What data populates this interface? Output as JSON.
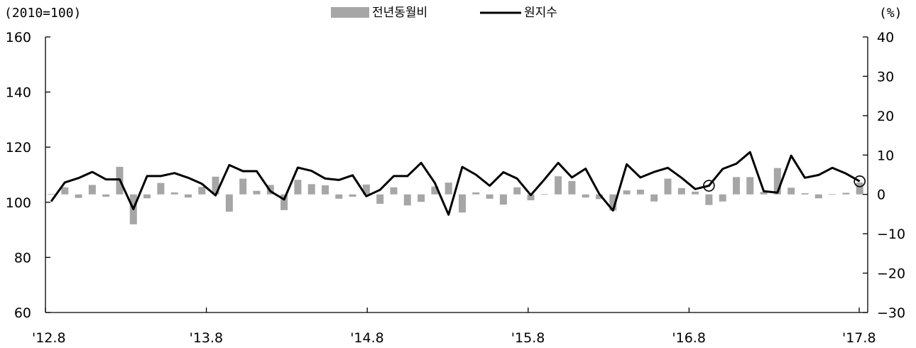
{
  "chart_data": {
    "type": "bar+line",
    "left_axis_unit": "(2010=100)",
    "right_axis_unit": "(%)",
    "legend": [
      "전년동월비",
      "원지수"
    ],
    "left_ylim": [
      60,
      160
    ],
    "left_yticks": [
      60,
      80,
      100,
      120,
      140,
      160
    ],
    "right_ylim": [
      -30,
      40
    ],
    "right_yticks": [
      -30,
      -20,
      -10,
      0,
      10,
      20,
      30,
      40
    ],
    "x_tick_labels": [
      "'12.8",
      "'13.8",
      "'14.8",
      "'15.8",
      "'16.8",
      "'17.8"
    ],
    "x_start": "2012-08",
    "series": [
      {
        "name": "원지수",
        "axis": "left",
        "type": "line",
        "color": "#000000",
        "values": [
          100.3,
          107.2,
          108.8,
          111.0,
          108.3,
          108.3,
          97.5,
          109.5,
          109.5,
          110.6,
          108.9,
          106.7,
          102.5,
          113.5,
          111.3,
          111.3,
          104.0,
          101.0,
          112.6,
          111.4,
          108.6,
          108.1,
          109.8,
          102.2,
          104.5,
          109.5,
          109.5,
          114.3,
          107.0,
          95.5,
          112.8,
          110.0,
          106.0,
          110.9,
          108.6,
          102.6,
          108.3,
          114.3,
          109.0,
          112.2,
          103.0,
          97.0,
          113.8,
          109.0,
          111.0,
          112.5,
          108.9,
          104.8,
          106.0,
          112.1,
          114.0,
          118.2,
          104.0,
          103.5,
          116.9,
          108.9,
          109.9,
          112.5,
          110.4,
          107.6
        ]
      },
      {
        "name": "전년동월비",
        "axis": "right",
        "type": "bar",
        "color": "#a6a6a6",
        "values": [
          0.0,
          1.8,
          -0.9,
          2.4,
          -0.6,
          7.0,
          -7.6,
          -1.0,
          2.9,
          0.5,
          -0.8,
          1.9,
          4.5,
          -4.4,
          4.0,
          0.9,
          2.4,
          -4.0,
          3.7,
          2.6,
          2.3,
          -1.1,
          -0.6,
          2.5,
          -2.4,
          1.8,
          -2.8,
          -1.9,
          2.0,
          3.0,
          -4.6,
          0.5,
          -1.1,
          -2.6,
          1.8,
          -1.5,
          0.0,
          4.6,
          3.4,
          -0.8,
          -1.2,
          -4.1,
          1.0,
          1.2,
          -1.8,
          4.0,
          1.6,
          0.7,
          -2.7,
          -1.8,
          4.4,
          4.4,
          0.6,
          6.7,
          1.7,
          0.3,
          -1.0,
          0.0,
          0.4,
          3.0
        ]
      }
    ],
    "highlighted_points": [
      "2016-08",
      "2017-07"
    ]
  }
}
